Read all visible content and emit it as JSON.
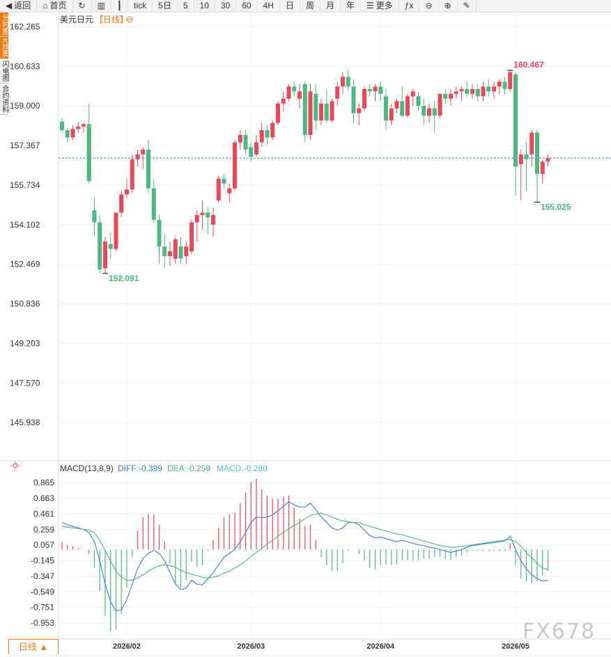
{
  "toolbar": {
    "items": [
      {
        "label": "返回",
        "icon": "back-arrow-icon"
      },
      {
        "label": "首页",
        "icon": "home-icon"
      },
      {
        "label": "",
        "icon": "refresh-icon"
      },
      {
        "label": "",
        "icon": "bar-chart-icon"
      },
      {
        "label": "",
        "icon": "candlestick-icon"
      },
      {
        "label": "tick",
        "icon": ""
      },
      {
        "label": "5日",
        "icon": ""
      },
      {
        "label": "5",
        "icon": ""
      },
      {
        "label": "10",
        "icon": ""
      },
      {
        "label": "30",
        "icon": ""
      },
      {
        "label": "60",
        "icon": ""
      },
      {
        "label": "4H",
        "icon": ""
      },
      {
        "label": "日",
        "icon": ""
      },
      {
        "label": "周",
        "icon": ""
      },
      {
        "label": "月",
        "icon": ""
      },
      {
        "label": "年",
        "icon": ""
      },
      {
        "label": "更多",
        "icon": "menu-icon"
      },
      {
        "label": "",
        "icon": "function-icon"
      },
      {
        "label": "",
        "icon": "zoom-out-icon"
      },
      {
        "label": "",
        "icon": "zoom-in-icon"
      },
      {
        "label": "",
        "icon": "pencil-icon"
      }
    ]
  },
  "sidebar": {
    "items": [
      {
        "label": "分时图",
        "active": true
      },
      {
        "label": "K线图",
        "active": true
      },
      {
        "label": "闪电图",
        "active": false
      },
      {
        "label": "合约资料",
        "active": false
      }
    ]
  },
  "legend": {
    "symbol": "美元日元",
    "period": "【日线】"
  },
  "macd_legend": {
    "title": "MACD(13,8,9)",
    "diff": "DIFF:-0.399",
    "dea": "DEA:-0.259",
    "macd": "MACD:-0.280"
  },
  "period_button": "日线 ▲",
  "watermark": "FX678",
  "colors": {
    "up": "#e8485a",
    "down": "#4db882",
    "diff": "#3b7dd8",
    "dea": "#4db882",
    "accent": "#f07b12"
  },
  "chart_data": [
    {
      "type": "candlestick",
      "title": "美元日元",
      "period": "日线",
      "y_ticks": [
        162.265,
        160.633,
        159.0,
        157.367,
        155.734,
        154.102,
        152.469,
        150.836,
        149.203,
        147.57,
        145.938
      ],
      "ylim": [
        145.28,
        162.74
      ],
      "x_ticks": [
        "2026/02",
        "2026/03",
        "2026/04",
        "2026/05"
      ],
      "x_tick_index": [
        12,
        35,
        59,
        84
      ],
      "last_price": 156.85,
      "annotations": [
        {
          "label": "152.091",
          "index": 8,
          "value": 152.09,
          "type": "low"
        },
        {
          "label": "160.467",
          "index": 83,
          "value": 160.47,
          "type": "high"
        },
        {
          "label": "155.025",
          "index": 88,
          "value": 155.03,
          "type": "low"
        }
      ],
      "ohlc": [
        [
          158.35,
          158.5,
          157.9,
          158.0
        ],
        [
          158.0,
          158.1,
          157.5,
          157.7
        ],
        [
          157.7,
          158.2,
          157.6,
          158.05
        ],
        [
          158.05,
          158.35,
          157.9,
          158.15
        ],
        [
          158.15,
          158.3,
          157.9,
          158.25
        ],
        [
          158.25,
          159.1,
          155.8,
          155.9
        ],
        [
          154.7,
          155.2,
          153.6,
          154.2
        ],
        [
          154.2,
          154.5,
          152.1,
          152.25
        ],
        [
          152.3,
          153.6,
          152.09,
          153.4
        ],
        [
          153.3,
          153.8,
          152.7,
          153.1
        ],
        [
          153.1,
          154.6,
          153.0,
          154.6
        ],
        [
          154.6,
          155.5,
          154.4,
          155.35
        ],
        [
          155.35,
          156.0,
          155.2,
          155.55
        ],
        [
          155.55,
          157.0,
          155.4,
          156.8
        ],
        [
          156.8,
          157.2,
          156.5,
          157.0
        ],
        [
          157.0,
          157.3,
          156.4,
          157.2
        ],
        [
          157.2,
          157.6,
          155.4,
          155.6
        ],
        [
          155.6,
          156.0,
          154.2,
          154.3
        ],
        [
          154.3,
          154.5,
          152.5,
          153.2
        ],
        [
          153.2,
          153.7,
          152.3,
          152.8
        ],
        [
          152.8,
          153.4,
          152.4,
          153.0
        ],
        [
          152.7,
          153.6,
          152.5,
          153.5
        ],
        [
          153.2,
          153.6,
          152.5,
          152.7
        ],
        [
          152.8,
          153.4,
          152.5,
          153.2
        ],
        [
          153.0,
          154.3,
          152.9,
          154.2
        ],
        [
          154.2,
          154.7,
          153.4,
          154.5
        ],
        [
          154.5,
          155.1,
          153.9,
          154.6
        ],
        [
          154.6,
          154.8,
          153.7,
          154.4
        ],
        [
          154.1,
          154.8,
          153.6,
          154.5
        ],
        [
          155.1,
          156.1,
          155.0,
          156.0
        ],
        [
          156.0,
          156.2,
          155.6,
          155.8
        ],
        [
          155.4,
          155.8,
          155.0,
          155.6
        ],
        [
          155.6,
          157.6,
          155.5,
          157.5
        ],
        [
          157.5,
          158.0,
          157.2,
          157.8
        ],
        [
          157.8,
          158.0,
          157.0,
          157.2
        ],
        [
          157.3,
          157.5,
          156.7,
          156.9
        ],
        [
          157.0,
          157.8,
          156.9,
          157.5
        ],
        [
          157.5,
          158.3,
          157.3,
          158.0
        ],
        [
          158.0,
          158.2,
          157.4,
          157.7
        ],
        [
          157.7,
          158.4,
          157.6,
          158.3
        ],
        [
          158.3,
          159.2,
          158.2,
          159.1
        ],
        [
          159.1,
          159.6,
          158.8,
          159.3
        ],
        [
          159.3,
          159.9,
          159.2,
          159.8
        ],
        [
          159.8,
          160.0,
          159.4,
          159.6
        ],
        [
          159.3,
          159.9,
          158.9,
          159.6
        ],
        [
          159.9,
          160.0,
          157.5,
          157.8
        ],
        [
          157.8,
          159.9,
          157.6,
          159.6
        ],
        [
          159.5,
          159.9,
          158.0,
          158.4
        ],
        [
          158.4,
          159.3,
          158.2,
          159.1
        ],
        [
          159.1,
          159.7,
          158.3,
          158.4
        ],
        [
          158.4,
          159.3,
          158.3,
          159.2
        ],
        [
          159.3,
          160.0,
          159.0,
          159.8
        ],
        [
          159.8,
          160.4,
          159.5,
          160.2
        ],
        [
          160.2,
          160.5,
          159.6,
          159.8
        ],
        [
          159.8,
          160.1,
          158.3,
          158.7
        ],
        [
          158.7,
          159.1,
          158.2,
          158.9
        ],
        [
          158.9,
          159.8,
          158.8,
          159.7
        ],
        [
          159.7,
          159.9,
          159.4,
          159.6
        ],
        [
          159.6,
          159.9,
          159.2,
          159.8
        ],
        [
          159.8,
          160.0,
          159.2,
          159.5
        ],
        [
          159.4,
          159.7,
          158.0,
          158.4
        ],
        [
          158.4,
          159.1,
          158.2,
          158.9
        ],
        [
          158.9,
          159.3,
          158.7,
          159.2
        ],
        [
          159.2,
          159.8,
          158.5,
          158.6
        ],
        [
          158.6,
          159.5,
          158.5,
          159.4
        ],
        [
          159.4,
          159.7,
          159.0,
          159.6
        ],
        [
          159.4,
          159.6,
          158.8,
          159.0
        ],
        [
          159.0,
          159.3,
          158.2,
          158.6
        ],
        [
          158.6,
          159.1,
          158.3,
          158.9
        ],
        [
          158.9,
          159.2,
          157.9,
          158.6
        ],
        [
          158.6,
          159.5,
          158.5,
          159.5
        ],
        [
          159.5,
          159.7,
          159.1,
          159.3
        ],
        [
          159.3,
          159.7,
          159.0,
          159.5
        ],
        [
          159.5,
          159.8,
          159.3,
          159.6
        ],
        [
          159.6,
          159.8,
          159.2,
          159.7
        ],
        [
          159.7,
          160.0,
          159.4,
          159.5
        ],
        [
          159.5,
          159.9,
          159.3,
          159.7
        ],
        [
          159.7,
          159.9,
          159.2,
          159.4
        ],
        [
          159.4,
          160.0,
          159.2,
          159.8
        ],
        [
          159.8,
          160.1,
          159.4,
          159.6
        ],
        [
          159.6,
          160.0,
          159.3,
          159.8
        ],
        [
          159.8,
          160.1,
          159.5,
          160.0
        ],
        [
          160.0,
          160.2,
          159.5,
          159.7
        ],
        [
          159.7,
          160.47,
          159.6,
          160.4
        ],
        [
          160.3,
          160.4,
          155.3,
          156.5
        ],
        [
          156.6,
          157.2,
          155.1,
          157.0
        ],
        [
          157.0,
          157.5,
          155.5,
          156.8
        ],
        [
          157.0,
          158.0,
          156.5,
          157.9
        ],
        [
          157.9,
          158.0,
          155.03,
          156.2
        ],
        [
          156.2,
          156.8,
          155.8,
          156.7
        ],
        [
          156.7,
          157.0,
          156.5,
          156.85
        ]
      ]
    },
    {
      "type": "macd",
      "title": "MACD(13,8,9)",
      "y_ticks": [
        0.865,
        0.663,
        0.461,
        0.259,
        0.057,
        -0.145,
        -0.347,
        -0.549,
        -0.751,
        -0.953
      ],
      "ylim": [
        -1.16,
        0.97
      ],
      "series": [
        {
          "name": "DIFF",
          "color": "#3b7dd8",
          "values": [
            0.35,
            0.32,
            0.3,
            0.28,
            0.26,
            0.22,
            0.1,
            -0.15,
            -0.45,
            -0.68,
            -0.8,
            -0.78,
            -0.65,
            -0.45,
            -0.25,
            -0.12,
            -0.05,
            -0.01,
            -0.05,
            -0.15,
            -0.3,
            -0.45,
            -0.52,
            -0.5,
            -0.4,
            -0.45,
            -0.46,
            -0.38,
            -0.3,
            -0.2,
            -0.1,
            -0.05,
            0.0,
            0.1,
            0.22,
            0.35,
            0.42,
            0.41,
            0.42,
            0.45,
            0.5,
            0.56,
            0.62,
            0.58,
            0.55,
            0.55,
            0.6,
            0.52,
            0.42,
            0.35,
            0.28,
            0.25,
            0.28,
            0.35,
            0.35,
            0.32,
            0.25,
            0.18,
            0.15,
            0.16,
            0.14,
            0.12,
            0.1,
            0.12,
            0.1,
            0.08,
            0.06,
            0.05,
            0.03,
            0.02,
            0.0,
            -0.02,
            -0.04,
            -0.02,
            0.0,
            0.03,
            0.05,
            0.06,
            0.07,
            0.08,
            0.09,
            0.1,
            0.11,
            0.17,
            0.0,
            -0.15,
            -0.25,
            -0.33,
            -0.38,
            -0.41,
            -0.4
          ]
        },
        {
          "name": "DEA",
          "color": "#4db882",
          "values": [
            0.3,
            0.29,
            0.28,
            0.27,
            0.26,
            0.25,
            0.22,
            0.12,
            -0.02,
            -0.15,
            -0.28,
            -0.36,
            -0.4,
            -0.4,
            -0.37,
            -0.33,
            -0.28,
            -0.24,
            -0.21,
            -0.2,
            -0.21,
            -0.23,
            -0.27,
            -0.3,
            -0.32,
            -0.34,
            -0.36,
            -0.37,
            -0.36,
            -0.34,
            -0.31,
            -0.28,
            -0.24,
            -0.2,
            -0.15,
            -0.09,
            -0.04,
            0.02,
            0.07,
            0.12,
            0.17,
            0.22,
            0.27,
            0.31,
            0.35,
            0.4,
            0.44,
            0.46,
            0.47,
            0.45,
            0.42,
            0.39,
            0.37,
            0.36,
            0.35,
            0.35,
            0.32,
            0.3,
            0.28,
            0.26,
            0.24,
            0.22,
            0.2,
            0.19,
            0.17,
            0.15,
            0.13,
            0.11,
            0.09,
            0.07,
            0.05,
            0.04,
            0.03,
            0.03,
            0.04,
            0.05,
            0.06,
            0.07,
            0.08,
            0.09,
            0.1,
            0.11,
            0.12,
            0.13,
            0.1,
            0.04,
            -0.04,
            -0.11,
            -0.18,
            -0.24,
            -0.26
          ]
        },
        {
          "name": "MACD",
          "color_up": "#e8485a",
          "color_down": "#4db882",
          "values": [
            0.1,
            0.06,
            0.04,
            0.02,
            0.0,
            -0.06,
            -0.24,
            -0.54,
            -0.86,
            -1.06,
            -1.04,
            -0.84,
            -0.5,
            -0.1,
            0.24,
            0.42,
            0.46,
            0.46,
            0.32,
            0.1,
            -0.18,
            -0.44,
            -0.5,
            -0.4,
            -0.16,
            -0.22,
            -0.2,
            -0.02,
            0.12,
            0.28,
            0.42,
            0.46,
            0.48,
            0.6,
            0.74,
            0.88,
            0.92,
            0.78,
            0.7,
            0.66,
            0.66,
            0.68,
            0.7,
            0.54,
            0.4,
            0.3,
            0.32,
            0.12,
            -0.1,
            -0.2,
            -0.28,
            -0.28,
            -0.18,
            -0.02,
            0.0,
            -0.06,
            -0.14,
            -0.24,
            -0.26,
            -0.2,
            -0.2,
            -0.2,
            -0.2,
            -0.14,
            -0.14,
            -0.14,
            -0.14,
            -0.12,
            -0.12,
            -0.1,
            -0.1,
            -0.12,
            -0.14,
            -0.1,
            -0.08,
            -0.04,
            -0.02,
            -0.02,
            -0.02,
            -0.02,
            -0.02,
            -0.02,
            -0.02,
            0.08,
            -0.2,
            -0.38,
            -0.42,
            -0.44,
            -0.4,
            -0.34,
            -0.28
          ]
        }
      ]
    }
  ]
}
